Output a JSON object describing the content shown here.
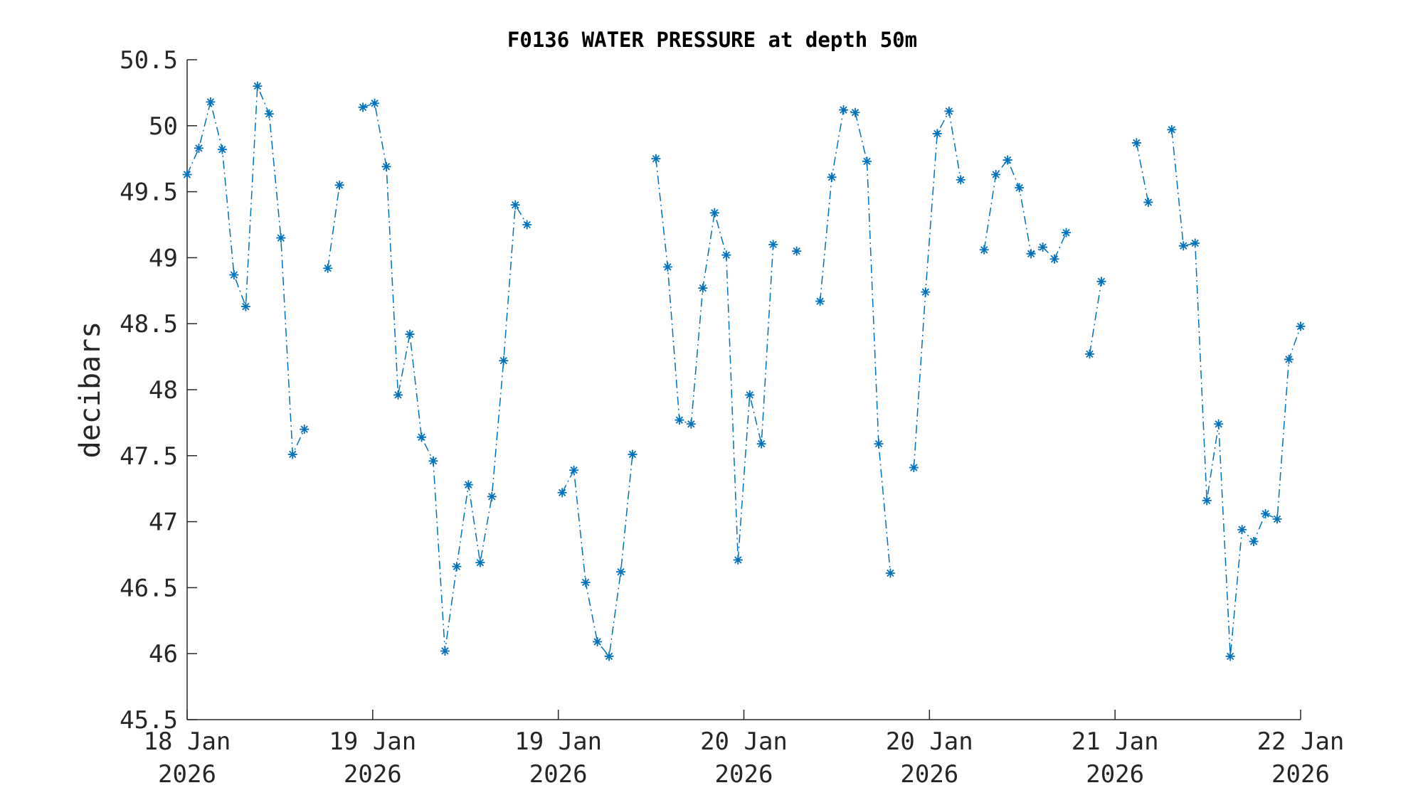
{
  "chart_data": {
    "type": "line",
    "title": "F0136 WATER PRESSURE at depth 50m",
    "ylabel": "decibars",
    "xlabel": "",
    "ylim": [
      45.5,
      50.5
    ],
    "y_ticks": [
      "50.5",
      "50",
      "49.5",
      "49",
      "48.5",
      "48",
      "47.5",
      "47",
      "46.5",
      "46",
      "45.5"
    ],
    "x_ticks": [
      {
        "line1": "18 Jan",
        "line2": "2026"
      },
      {
        "line1": "19 Jan",
        "line2": "2026"
      },
      {
        "line1": "19 Jan",
        "line2": "2026"
      },
      {
        "line1": "20 Jan",
        "line2": "2026"
      },
      {
        "line1": "20 Jan",
        "line2": "2026"
      },
      {
        "line1": "21 Jan",
        "line2": "2026"
      },
      {
        "line1": "22 Jan",
        "line2": "2026"
      }
    ],
    "grid": false,
    "legend": "none",
    "color": "#0072BD",
    "series": [
      {
        "values": [
          49.63,
          49.83,
          50.18,
          49.82,
          48.87,
          48.63,
          50.3,
          50.09,
          49.15,
          47.51,
          47.7,
          null,
          48.92,
          49.55,
          null,
          50.14,
          50.17,
          49.69,
          47.96,
          48.42,
          47.64,
          47.46,
          46.02,
          46.66,
          47.28,
          46.69,
          47.19,
          48.22,
          49.4,
          49.25,
          null,
          null,
          47.22,
          47.39,
          46.54,
          46.09,
          45.98,
          46.62,
          47.51,
          null,
          49.75,
          48.93,
          47.77,
          47.74,
          48.77,
          49.34,
          49.02,
          46.71,
          47.96,
          47.59,
          49.1,
          null,
          49.05,
          null,
          48.67,
          49.61,
          50.12,
          50.1,
          49.73,
          47.59,
          46.61,
          null,
          47.41,
          48.74,
          49.94,
          50.11,
          49.59,
          null,
          49.06,
          49.63,
          49.74,
          49.53,
          49.03,
          49.08,
          48.99,
          49.19,
          null,
          48.27,
          48.82,
          null,
          null,
          49.87,
          49.42,
          null,
          49.97,
          49.09,
          49.11,
          47.16,
          47.74,
          45.98,
          46.94,
          46.85,
          47.06,
          47.02,
          48.23,
          48.48
        ]
      }
    ]
  }
}
